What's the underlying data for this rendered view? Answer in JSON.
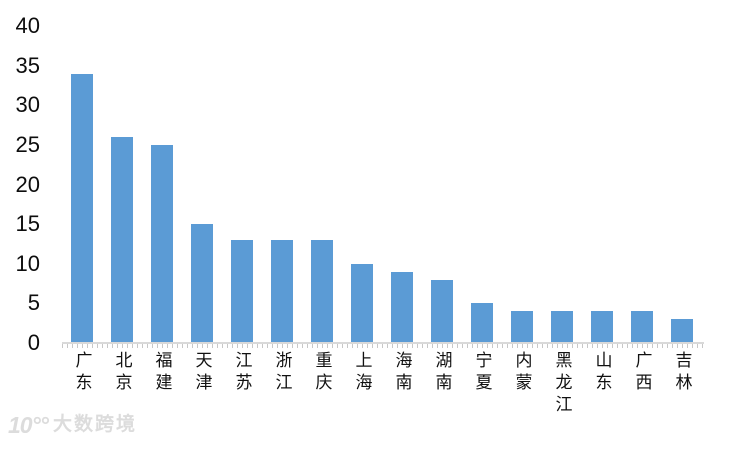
{
  "chart_data": {
    "type": "bar",
    "title": "",
    "xlabel": "",
    "ylabel": "",
    "categories": [
      "广东",
      "北京",
      "福建",
      "天津",
      "江苏",
      "浙江",
      "重庆",
      "上海",
      "海南",
      "湖南",
      "宁夏",
      "内蒙",
      "黑龙江",
      "山东",
      "广西",
      "吉林"
    ],
    "values": [
      34,
      26,
      25,
      15,
      13,
      13,
      13,
      10,
      9,
      8,
      5,
      4,
      4,
      4,
      4,
      3
    ],
    "yticks": [
      0,
      5,
      10,
      15,
      20,
      25,
      30,
      35,
      40
    ],
    "ylim": [
      0,
      40
    ],
    "grid": false,
    "legend": false,
    "bar_color": "#5b9bd5",
    "axis_color": "#d9d9d9",
    "tick_color": "#c8c8c8",
    "label_color": "#111111"
  },
  "watermark": {
    "logo": "10°°",
    "text": "大数跨境",
    "color": "#dcdcdc"
  }
}
